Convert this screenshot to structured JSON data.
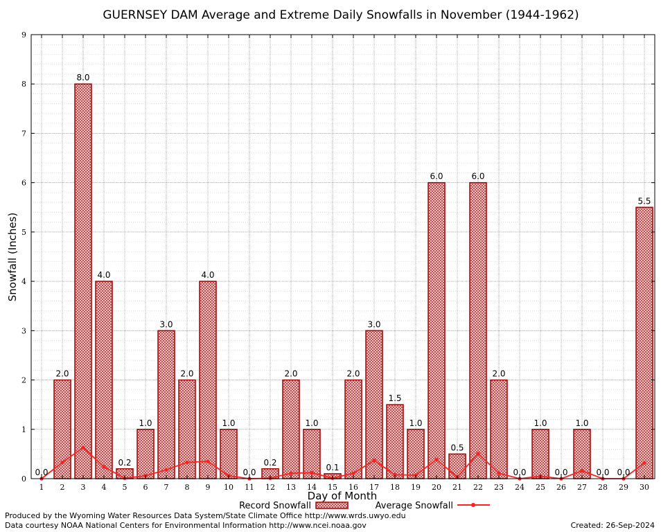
{
  "chart_data": {
    "type": "bar",
    "title": "GUERNSEY DAM Average and Extreme Daily Snowfalls in November (1944-1962)",
    "xlabel": "Day of Month",
    "ylabel": "Snowfall (Inches)",
    "ylim": [
      0,
      9
    ],
    "yticks": [
      "0",
      "1",
      "2",
      "3",
      "4",
      "5",
      "6",
      "7",
      "8",
      "9"
    ],
    "grid": true,
    "legend_position": "bottom",
    "categories": [
      "1",
      "2",
      "3",
      "4",
      "5",
      "6",
      "7",
      "8",
      "9",
      "10",
      "11",
      "12",
      "13",
      "14",
      "15",
      "16",
      "17",
      "18",
      "19",
      "20",
      "21",
      "22",
      "23",
      "24",
      "25",
      "26",
      "27",
      "28",
      "29",
      "30"
    ],
    "series": [
      {
        "name": "Record Snowfall",
        "type": "bar",
        "color": "#aa0000",
        "values": [
          0.0,
          2.0,
          8.0,
          4.0,
          0.2,
          1.0,
          3.0,
          2.0,
          4.0,
          1.0,
          0.0,
          0.2,
          2.0,
          1.0,
          0.1,
          2.0,
          3.0,
          1.5,
          1.0,
          6.0,
          0.5,
          6.0,
          2.0,
          0.0,
          1.0,
          0.0,
          1.0,
          0.0,
          0.0,
          5.5
        ],
        "labels": [
          "0.0",
          "2.0",
          "8.0",
          "4.0",
          "0.2",
          "1.0",
          "3.0",
          "2.0",
          "4.0",
          "1.0",
          "0.0",
          "0.2",
          "2.0",
          "1.0",
          "0.1",
          "2.0",
          "3.0",
          "1.5",
          "1.0",
          "6.0",
          "0.5",
          "6.0",
          "2.0",
          "0.0",
          "1.0",
          "0.0",
          "1.0",
          "0.0",
          "0.0",
          "5.5"
        ]
      },
      {
        "name": "Average Snowfall",
        "type": "line",
        "color": "#ff2020",
        "values": [
          0.0,
          0.33,
          0.63,
          0.24,
          0.01,
          0.06,
          0.18,
          0.33,
          0.35,
          0.06,
          0.0,
          0.01,
          0.11,
          0.12,
          0.01,
          0.11,
          0.37,
          0.08,
          0.07,
          0.39,
          0.03,
          0.51,
          0.11,
          0.0,
          0.05,
          0.0,
          0.16,
          0.0,
          0.0,
          0.32
        ]
      }
    ]
  },
  "footer": {
    "left_line1": "Produced by the Wyoming Water Resources Data System/State Climate Office http://www.wrds.uwyo.edu",
    "left_line2": "Data courtesy NOAA National Centers for Environmental Information http://www.ncei.noaa.gov",
    "created": "Created:  26-Sep-2024"
  }
}
